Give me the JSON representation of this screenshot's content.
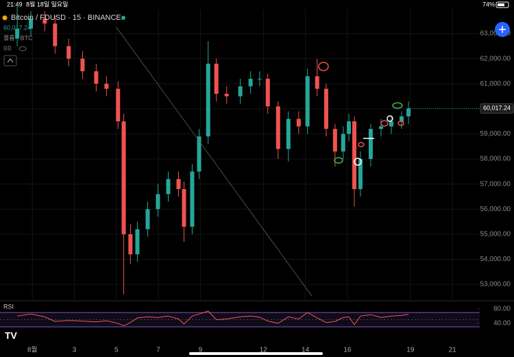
{
  "status_bar": {
    "time": "21:49",
    "date": "8월 18일 일요일",
    "battery": "74%"
  },
  "chart_data": {
    "type": "candlestick",
    "title": "Bitcoin / FDUSD · 15 · BINANCE",
    "last_price_label": "60,017.24",
    "volume_label": "볼륨 · BTC",
    "indicator_label": "BB",
    "up_color": "#26a69a",
    "down_color": "#ef5350",
    "grid": true,
    "x": [
      0.28,
      0.93,
      1.59,
      2.08,
      2.73,
      3.39,
      4.04,
      4.53,
      5.08,
      5.35,
      5.67,
      6.0,
      6.49,
      6.98,
      7.47,
      7.96,
      8.22,
      8.61,
      8.94,
      9.37,
      9.76,
      10.25,
      10.9,
      11.39,
      11.82,
      12.21,
      12.7,
      13.19,
      13.68,
      14.1,
      14.56,
      14.99,
      15.41,
      15.8,
      16.07,
      16.33,
      16.62,
      17.11,
      17.6,
      18.09,
      18.58,
      18.91
    ],
    "open": [
      62800,
      63200,
      63600,
      63400,
      62500,
      62000,
      61500,
      61000,
      60800,
      59500,
      55000,
      54200,
      55200,
      56000,
      56600,
      57200,
      56800,
      55300,
      57500,
      58900,
      61800,
      60600,
      60500,
      60900,
      61200,
      61200,
      60100,
      58400,
      59600,
      59300,
      61300,
      60800,
      59200,
      58300,
      59000,
      59500,
      56800,
      58000,
      59200,
      59300,
      59500,
      59700
    ],
    "high": [
      64066,
      63900,
      63900,
      63700,
      62800,
      62300,
      61800,
      61300,
      61100,
      59800,
      55400,
      55500,
      56300,
      57000,
      57500,
      57500,
      57100,
      57800,
      59200,
      62700,
      62000,
      60900,
      61200,
      61500,
      61500,
      61400,
      60300,
      59900,
      59900,
      61600,
      62000,
      61000,
      59400,
      59300,
      59800,
      59700,
      58300,
      59400,
      59600,
      59700,
      59900,
      60300
    ],
    "low": [
      62500,
      62900,
      63100,
      62200,
      61700,
      61200,
      60700,
      60500,
      59200,
      52600,
      53800,
      53900,
      54900,
      55700,
      56300,
      56500,
      54700,
      55000,
      57200,
      58600,
      60300,
      60200,
      60200,
      60600,
      60900,
      59800,
      58000,
      57900,
      59000,
      59000,
      60500,
      58900,
      57700,
      58000,
      58700,
      56100,
      56500,
      57700,
      58900,
      59000,
      59200,
      59400
    ],
    "close": [
      63200,
      63600,
      63400,
      62500,
      62000,
      61500,
      61000,
      60800,
      59500,
      55000,
      54200,
      55200,
      56000,
      56600,
      57200,
      56800,
      55300,
      57500,
      58900,
      61800,
      60600,
      60500,
      60900,
      61200,
      61200,
      60100,
      58400,
      59600,
      59300,
      61300,
      60800,
      59200,
      58300,
      59000,
      59500,
      56800,
      58000,
      59200,
      59300,
      59500,
      59700,
      60017.24
    ],
    "xlim": [
      -0.54,
      22.3
    ],
    "xticks": [
      {
        "value": 1,
        "label": "8월"
      },
      3,
      5,
      7,
      9,
      12,
      14,
      16,
      19,
      21
    ],
    "ylim": [
      52400,
      64340
    ],
    "yticks": [
      {
        "value": 53000,
        "label": "53,000.00"
      },
      {
        "value": 54000,
        "label": "54,000.00"
      },
      {
        "value": 55000,
        "label": "55,000.00"
      },
      {
        "value": 56000,
        "label": "56,000.00"
      },
      {
        "value": 57000,
        "label": "57,000.00"
      },
      {
        "value": 58000,
        "label": "58,000.00"
      },
      {
        "value": 59000,
        "label": "59,000.00"
      },
      {
        "value": 60000,
        "label": "60,000.00"
      },
      {
        "value": 61000,
        "label": "61,000.00"
      },
      {
        "value": 62000,
        "label": "62,000.00"
      },
      {
        "value": 63000,
        "label": "63,000.00"
      }
    ],
    "rsi": {
      "name": "RSI",
      "color": "#f05a5a",
      "band_color": "#7e57c2",
      "values": [
        60,
        66,
        58,
        45,
        48,
        46,
        44,
        47,
        40,
        33,
        42,
        55,
        58,
        56,
        60,
        52,
        38,
        60,
        66,
        74,
        50,
        52,
        58,
        60,
        57,
        46,
        40,
        58,
        52,
        70,
        55,
        42,
        45,
        56,
        58,
        36,
        60,
        64,
        56,
        60,
        62,
        65
      ],
      "band": [
        30,
        70
      ],
      "ylim": [
        5,
        99
      ],
      "yticks": [
        {
          "value": 40,
          "label": "40.00"
        },
        {
          "value": 80,
          "label": "80.00"
        }
      ]
    }
  }
}
